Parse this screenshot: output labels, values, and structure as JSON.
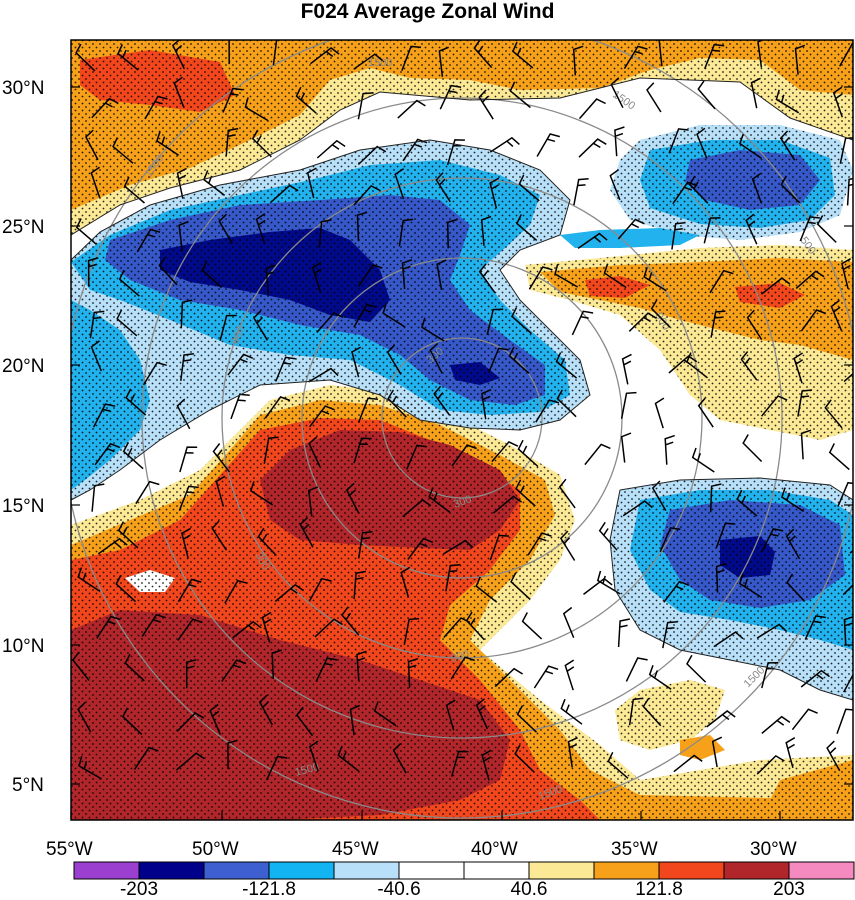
{
  "title": "F024 Average Zonal Wind",
  "map": {
    "lat_labels": [
      "30°N",
      "25°N",
      "20°N",
      "15°N",
      "10°N",
      "5°N"
    ],
    "lon_labels": [
      "55°W",
      "50°W",
      "45°W",
      "40°W",
      "35°W",
      "30°W"
    ],
    "range_ring_labels": [
      "1500",
      "1500",
      "1500",
      "900",
      "900",
      "900",
      "300",
      "300",
      "300",
      "500",
      "1500",
      "1500",
      "1500"
    ]
  },
  "colorbar": {
    "labels": [
      "-203",
      "-121.8",
      "-40.6",
      "40.6",
      "121.8",
      "203"
    ],
    "colors": [
      "#9a3fd0",
      "#00008b",
      "#3d5fd0",
      "#12b4f2",
      "#b8e0f8",
      "#ffffff",
      "#ffffff",
      "#fbe995",
      "#f7a11a",
      "#f2461c",
      "#b0262a",
      "#f58ac0"
    ]
  },
  "colors": {
    "deep_blue": "#000a8a",
    "blue": "#3658c8",
    "cyan": "#22b3ee",
    "light_blue": "#b8e0f8",
    "pale_yellow": "#fbe995",
    "orange": "#f7a11a",
    "red_orange": "#f2461c",
    "dark_red": "#b0262a",
    "ring_gray": "#8a8a8a"
  }
}
